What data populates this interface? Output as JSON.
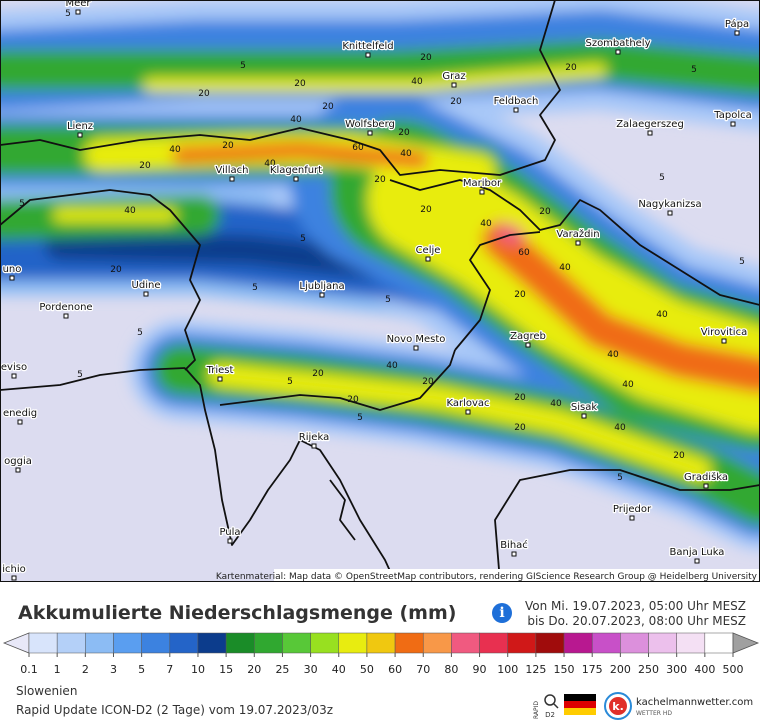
{
  "map": {
    "cities": [
      "Meer",
      "Knittelfeld",
      "Szombathely",
      "Pápa",
      "Graz",
      "Feldbach",
      "Lienz",
      "Wolfsberg",
      "Zalaegerszeg",
      "Tapolca",
      "Villach",
      "Klagenfurt",
      "Maribor",
      "Nagykanizsa",
      "Varaždin",
      "Celje",
      "Udine",
      "Ljubljana",
      "Pordenone",
      "uno",
      "Zagreb",
      "Virovitica",
      "Novo Mesto",
      "Triest",
      "eviso",
      "Karlovac",
      "Sisak",
      "enedig",
      "Rijeka",
      "oggia",
      "Gradiška",
      "Prijedor",
      "Pula",
      "Bihać",
      "Banja Luka",
      "ichio"
    ],
    "contour_labels": [
      5,
      5,
      20,
      20,
      20,
      40,
      20,
      20,
      5,
      40,
      20,
      20,
      20,
      60,
      40,
      20,
      40,
      40,
      20,
      20,
      40,
      60,
      20,
      40,
      5,
      5,
      40,
      20,
      5,
      5,
      20,
      40,
      40,
      40,
      20,
      40,
      20,
      20,
      5,
      20,
      40,
      20,
      40,
      5,
      5,
      20,
      5,
      5,
      5,
      5
    ],
    "attribution": "Kartenmaterial: Map data © OpenStreetMap contributors, rendering GIScience Research Group @ Heidelberg University"
  },
  "header": {
    "title": "Akkumulierte Niederschlagsmenge (mm)",
    "info": "i",
    "from": "Von Mi. 19.07.2023, 05:00 Uhr MESZ",
    "to": "bis Do. 20.07.2023, 08:00 Uhr MESZ"
  },
  "legend": {
    "ticks": [
      0.1,
      1,
      2,
      3,
      5,
      7,
      10,
      15,
      20,
      25,
      30,
      40,
      50,
      60,
      70,
      80,
      90,
      100,
      125,
      150,
      175,
      200,
      250,
      300,
      400,
      500
    ],
    "colors": [
      "#e8e8f8",
      "#d8e4fb",
      "#b4d0f8",
      "#8cbcf4",
      "#5a9ef0",
      "#3c82e0",
      "#2464c8",
      "#0c3c8c",
      "#1a8c28",
      "#30a830",
      "#58c838",
      "#98e020",
      "#e8ec10",
      "#f0c810",
      "#f06c14",
      "#f89848",
      "#f05a80",
      "#e83050",
      "#d01818",
      "#a00c0c",
      "#b81890",
      "#c850c8",
      "#dc90dc",
      "#ecc0ec",
      "#f4e0f4",
      "#ffffff",
      "#a0a0a0"
    ]
  },
  "footer": {
    "region": "Slowenien",
    "model": "Rapid Update ICON-D2 (2 Tage) vom 19.07.2023/03z",
    "badge_top": "RAPID",
    "badge_bottom": "D2",
    "brand": "kachelmannwetter.com",
    "brand_sub": "WETTER HD",
    "logo": "k."
  }
}
